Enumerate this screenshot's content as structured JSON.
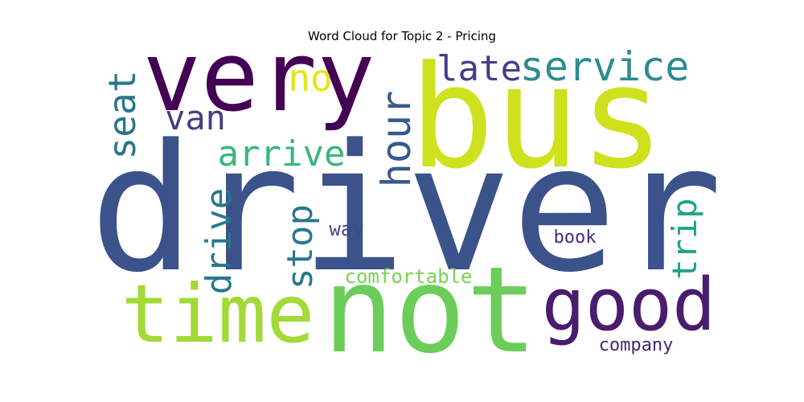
{
  "chart_data": {
    "type": "wordcloud",
    "title": "Word Cloud for Topic 2 - Pricing",
    "words": [
      {
        "text": "driver",
        "color": "#3b528b"
      },
      {
        "text": "bus",
        "color": "#cde11d"
      },
      {
        "text": "very",
        "color": "#440154"
      },
      {
        "text": "not",
        "color": "#6ccd5a"
      },
      {
        "text": "time",
        "color": "#a2da37"
      },
      {
        "text": "good",
        "color": "#4a1c6d"
      },
      {
        "text": "service",
        "color": "#2c8c8d"
      },
      {
        "text": "late",
        "color": "#433e85"
      },
      {
        "text": "no",
        "color": "#e8e419"
      },
      {
        "text": "seat",
        "color": "#28778e"
      },
      {
        "text": "hour",
        "color": "#38598c"
      },
      {
        "text": "van",
        "color": "#433e85"
      },
      {
        "text": "arrive",
        "color": "#35b779"
      },
      {
        "text": "drive",
        "color": "#2a788e"
      },
      {
        "text": "stop",
        "color": "#2a788e"
      },
      {
        "text": "trip",
        "color": "#20a387"
      },
      {
        "text": "way",
        "color": "#3e4a89"
      },
      {
        "text": "book",
        "color": "#472d7b"
      },
      {
        "text": "comfortable",
        "color": "#7ad151"
      },
      {
        "text": "company",
        "color": "#482576"
      }
    ]
  }
}
